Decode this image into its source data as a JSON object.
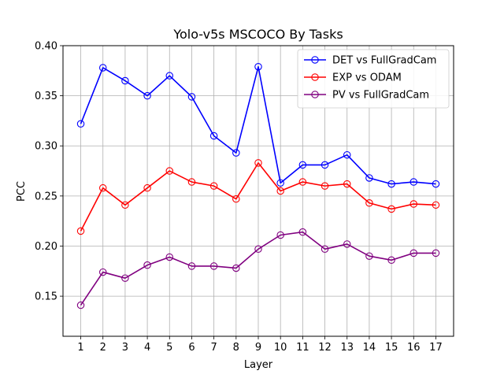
{
  "chart_data": {
    "type": "line",
    "title": "Yolo-v5s MSCOCO By Tasks",
    "xlabel": "Layer",
    "ylabel": "PCC",
    "x": [
      1,
      2,
      3,
      4,
      5,
      6,
      7,
      8,
      9,
      10,
      11,
      12,
      13,
      14,
      15,
      16,
      17
    ],
    "x_tick_labels": [
      "1",
      "2",
      "3",
      "4",
      "5",
      "6",
      "7",
      "8",
      "9",
      "10",
      "11",
      "12",
      "13",
      "14",
      "15",
      "16",
      "17"
    ],
    "xlim": [
      0.2,
      17.8
    ],
    "ylim": [
      0.11,
      0.4
    ],
    "y_ticks": [
      0.15,
      0.2,
      0.25,
      0.3,
      0.35,
      0.4
    ],
    "y_tick_labels": [
      "0.15",
      "0.20",
      "0.25",
      "0.30",
      "0.35",
      "0.40"
    ],
    "grid": true,
    "legend_position": "top-right",
    "marker": "open-circle",
    "series": [
      {
        "name": "DET vs FullGradCam",
        "color": "#0000ff",
        "values": [
          0.322,
          0.378,
          0.365,
          0.35,
          0.37,
          0.349,
          0.31,
          0.293,
          0.379,
          0.263,
          0.281,
          0.281,
          0.291,
          0.268,
          0.262,
          0.264,
          0.262
        ]
      },
      {
        "name": "EXP vs ODAM",
        "color": "#ff0000",
        "values": [
          0.215,
          0.258,
          0.241,
          0.258,
          0.275,
          0.264,
          0.26,
          0.247,
          0.283,
          0.255,
          0.264,
          0.26,
          0.262,
          0.243,
          0.237,
          0.242,
          0.241
        ]
      },
      {
        "name": "PV vs FullGradCam",
        "color": "#800080",
        "values": [
          0.141,
          0.174,
          0.168,
          0.181,
          0.189,
          0.18,
          0.18,
          0.178,
          0.197,
          0.211,
          0.214,
          0.197,
          0.202,
          0.19,
          0.186,
          0.193,
          0.193
        ]
      }
    ]
  }
}
